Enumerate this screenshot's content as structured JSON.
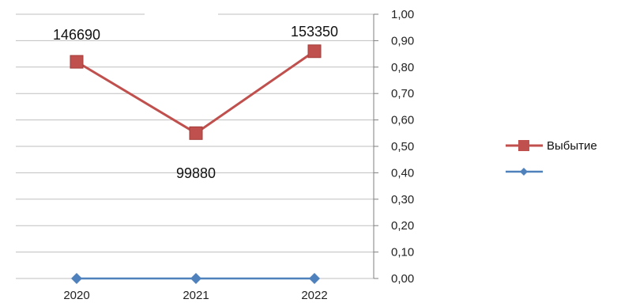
{
  "chart_data": {
    "type": "line",
    "categories": [
      "2020",
      "2021",
      "2022"
    ],
    "ylim": [
      0,
      1
    ],
    "yticks": [
      "0,00",
      "0,10",
      "0,20",
      "0,30",
      "0,40",
      "0,50",
      "0,60",
      "0,70",
      "0,80",
      "0,90",
      "1,00"
    ],
    "y_axis_position": "right",
    "grid": true,
    "legend_position": "right",
    "series": [
      {
        "name": "Выбытие",
        "values": [
          0.82,
          0.55,
          0.86
        ],
        "data_labels": [
          "146690",
          "99880",
          "153350"
        ],
        "color": "#c0504d",
        "marker": "square"
      },
      {
        "name": "",
        "values": [
          0,
          0,
          0
        ],
        "color": "#4f81bd",
        "marker": "diamond"
      }
    ]
  }
}
